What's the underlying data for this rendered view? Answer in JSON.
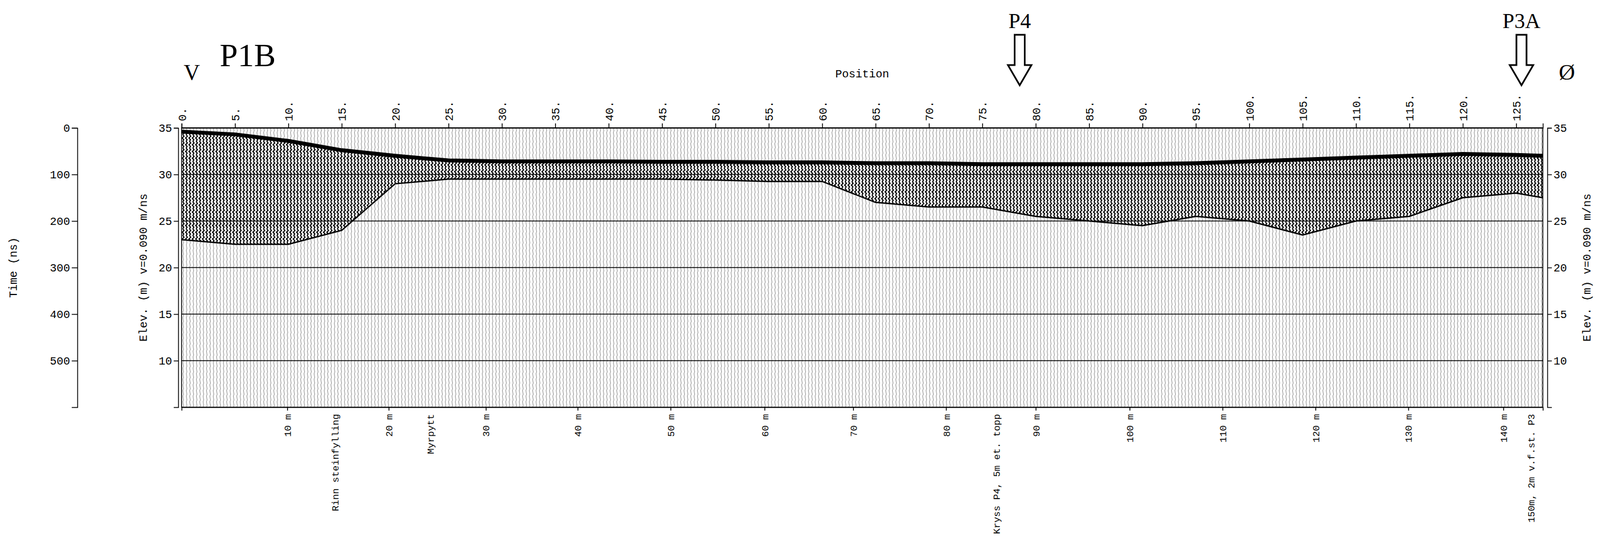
{
  "chart_data": {
    "type": "gpr_profile",
    "title": "P1B",
    "x_label": "Position",
    "y_label": "Time (ns)",
    "y2_label": "Elev. (m) v=0.090 m/ns",
    "xlim": [
      0,
      127.5
    ],
    "xticks": [
      {
        "value": 0,
        "label": "0."
      },
      {
        "value": 5,
        "label": "5."
      },
      {
        "value": 10,
        "label": "10."
      },
      {
        "value": 15,
        "label": "15."
      },
      {
        "value": 20,
        "label": "20."
      },
      {
        "value": 25,
        "label": "25."
      },
      {
        "value": 30,
        "label": "30."
      },
      {
        "value": 35,
        "label": "35."
      },
      {
        "value": 40,
        "label": "40."
      },
      {
        "value": 45,
        "label": "45."
      },
      {
        "value": 50,
        "label": "50."
      },
      {
        "value": 55,
        "label": "55."
      },
      {
        "value": 60,
        "label": "60."
      },
      {
        "value": 65,
        "label": "65."
      },
      {
        "value": 70,
        "label": "70."
      },
      {
        "value": 75,
        "label": "75."
      },
      {
        "value": 80,
        "label": "80."
      },
      {
        "value": 85,
        "label": "85."
      },
      {
        "value": 90,
        "label": "90."
      },
      {
        "value": 95,
        "label": "95."
      },
      {
        "value": 100,
        "label": "100."
      },
      {
        "value": 105,
        "label": "105."
      },
      {
        "value": 110,
        "label": "110."
      },
      {
        "value": 115,
        "label": "115."
      },
      {
        "value": 120,
        "label": "120."
      },
      {
        "value": 125,
        "label": "125."
      }
    ],
    "x2ticks": [
      {
        "value": 9.9,
        "label": "10 m"
      },
      {
        "value": 19.4,
        "label": "20 m"
      },
      {
        "value": 28.5,
        "label": "30 m"
      },
      {
        "value": 37.1,
        "label": "40 m"
      },
      {
        "value": 45.8,
        "label": "50 m"
      },
      {
        "value": 54.6,
        "label": "60 m"
      },
      {
        "value": 62.9,
        "label": "70 m"
      },
      {
        "value": 71.6,
        "label": "80 m"
      },
      {
        "value": 80,
        "label": "90 m"
      },
      {
        "value": 88.8,
        "label": "100 m"
      },
      {
        "value": 97.5,
        "label": "110 m"
      },
      {
        "value": 106.2,
        "label": "120 m"
      },
      {
        "value": 114.9,
        "label": "130 m"
      },
      {
        "value": 123.8,
        "label": "140 m"
      }
    ],
    "ylim": [
      0,
      600
    ],
    "yticks": [
      0,
      100,
      200,
      300,
      400,
      500
    ],
    "y2lim": [
      35,
      5
    ],
    "y2ticks": [
      35,
      30,
      25,
      20,
      15,
      10
    ],
    "grid": true,
    "x": [
      0,
      5,
      10,
      15,
      20,
      25,
      30,
      35,
      40,
      45,
      50,
      55,
      60,
      65,
      70,
      75,
      80,
      85,
      90,
      95,
      100,
      105,
      110,
      115,
      120,
      125,
      127.5
    ],
    "series": [
      {
        "color": "#000000",
        "values": [
          8,
          14,
          28,
          48,
          60,
          70,
          72,
          72,
          72,
          73,
          73,
          74,
          74,
          76,
          76,
          78,
          78,
          78,
          78,
          76,
          72,
          68,
          64,
          60,
          56,
          58,
          60
        ]
      },
      {
        "color": "#000000",
        "values": [
          240,
          250,
          250,
          220,
          120,
          110,
          110,
          110,
          110,
          110,
          112,
          115,
          115,
          160,
          170,
          170,
          190,
          200,
          210,
          190,
          200,
          230,
          200,
          190,
          150,
          140,
          150
        ]
      }
    ],
    "arrows": [
      {
        "text": "P4",
        "x": 78.5
      },
      {
        "text": "P3A",
        "x": 125.5
      }
    ],
    "labels": [
      {
        "text": "V",
        "x": 0.2
      },
      {
        "text": "Ø",
        "x": 129
      }
    ],
    "annotations": [
      {
        "text": "Rinn steinfylling",
        "x": 14.4
      },
      {
        "text": "Myrpytt",
        "x": 23.3
      },
      {
        "text": "Kryss P4, 5m et. topp",
        "x": 76.3
      },
      {
        "text": "150m, 2m v.f.st. P3",
        "x": 126.4
      }
    ]
  }
}
